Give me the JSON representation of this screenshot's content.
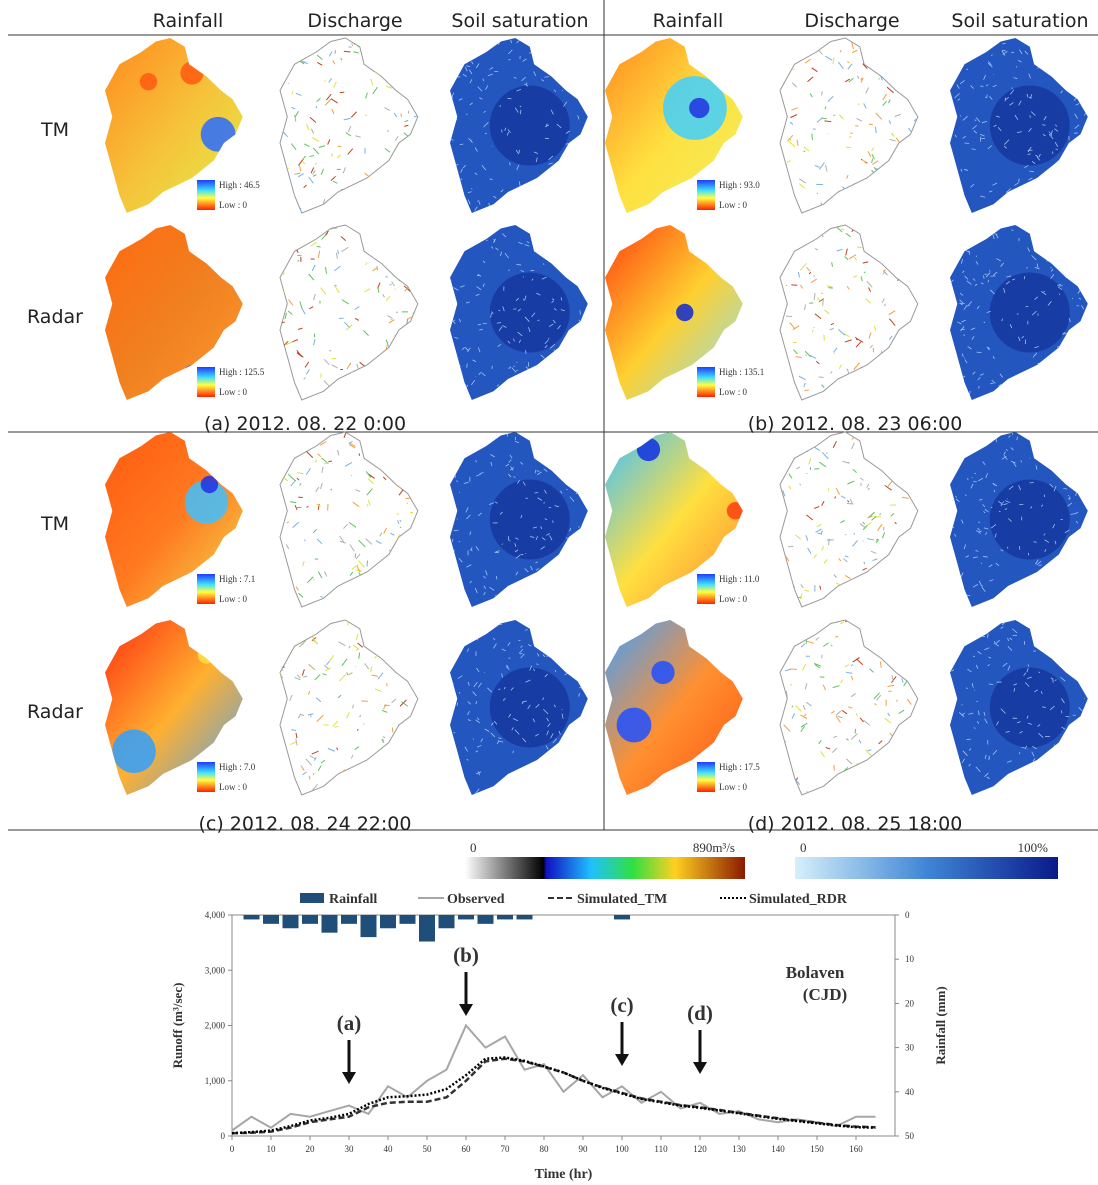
{
  "header": {
    "columns": [
      "Rainfall",
      "Discharge",
      "Soil saturation",
      "Rainfall",
      "Discharge",
      "Soil saturation"
    ]
  },
  "row_labels": [
    "TM",
    "Radar",
    "TM",
    "Radar"
  ],
  "panels": [
    {
      "caption": "(a) 2012. 08. 22 0:00",
      "rows": [
        {
          "legend": [
            "High : 46.5",
            "Low : 0"
          ]
        },
        {
          "legend": [
            "High : 125.5",
            "Low : 0"
          ]
        }
      ]
    },
    {
      "caption": "(b) 2012. 08. 23 06:00",
      "rows": [
        {
          "legend": [
            "High : 93.0",
            "Low : 0"
          ]
        },
        {
          "legend": [
            "High : 135.1",
            "Low : 0"
          ]
        }
      ]
    },
    {
      "caption": "(c) 2012. 08. 24 22:00",
      "rows": [
        {
          "legend": [
            "High : 7.1",
            "Low : 0"
          ]
        },
        {
          "legend": [
            "High : 7.0",
            "Low : 0"
          ]
        }
      ]
    },
    {
      "caption": "(d) 2012. 08. 25 18:00",
      "rows": [
        {
          "legend": [
            "High : 11.0",
            "Low : 0"
          ]
        },
        {
          "legend": [
            "High : 17.5",
            "Low : 0"
          ]
        }
      ]
    }
  ],
  "colorbars": [
    {
      "min": "0",
      "max": "890m³/s"
    },
    {
      "min": "0",
      "max": "100%"
    }
  ],
  "chart_data": {
    "type": "line",
    "x_label": "Time (hr)",
    "y_label": "Runoff (m³/sec)",
    "y2_label": "Rainfall (mm)",
    "inset_label": [
      "Bolaven",
      "(CJD)"
    ],
    "x": [
      0,
      5,
      10,
      15,
      20,
      25,
      30,
      35,
      40,
      45,
      50,
      55,
      60,
      65,
      70,
      75,
      80,
      85,
      90,
      95,
      100,
      105,
      110,
      115,
      120,
      125,
      130,
      135,
      140,
      145,
      150,
      155,
      160,
      165
    ],
    "series": [
      {
        "name": "Rainfall",
        "type": "bar",
        "axis": "y2",
        "color": "#1f4e79",
        "values": [
          0,
          1,
          2,
          3,
          2,
          4,
          2,
          5,
          3,
          2,
          6,
          3,
          1,
          2,
          1,
          1,
          0,
          0,
          0,
          0,
          1,
          0,
          0,
          0,
          0,
          0,
          0,
          0,
          0,
          0,
          0,
          0,
          0,
          0
        ]
      },
      {
        "name": "Observed",
        "color": "#a6a6a6",
        "values": [
          100,
          350,
          150,
          400,
          350,
          450,
          550,
          400,
          900,
          700,
          1000,
          1200,
          2000,
          1600,
          1800,
          1200,
          1300,
          800,
          1100,
          700,
          900,
          600,
          800,
          500,
          600,
          400,
          450,
          300,
          250,
          300,
          250,
          180,
          350,
          350
        ]
      },
      {
        "name": "Simulated_TM",
        "color": "#333333",
        "values": [
          50,
          60,
          80,
          150,
          250,
          300,
          350,
          520,
          600,
          620,
          620,
          700,
          1000,
          1350,
          1400,
          1350,
          1250,
          1150,
          1000,
          880,
          780,
          680,
          620,
          560,
          520,
          470,
          420,
          370,
          320,
          280,
          240,
          200,
          170,
          160
        ]
      },
      {
        "name": "Simulated_RDR",
        "color": "#000000",
        "values": [
          50,
          70,
          100,
          180,
          280,
          330,
          400,
          580,
          700,
          720,
          750,
          850,
          1100,
          1400,
          1420,
          1360,
          1260,
          1150,
          1000,
          870,
          770,
          670,
          610,
          550,
          510,
          460,
          410,
          360,
          310,
          270,
          230,
          190,
          160,
          150
        ]
      }
    ],
    "xlim": [
      0,
      170
    ],
    "xticks": [
      0,
      10,
      20,
      30,
      40,
      50,
      60,
      70,
      80,
      90,
      100,
      110,
      120,
      130,
      140,
      150,
      160
    ],
    "ylim": [
      0,
      4000
    ],
    "yticks": [
      0,
      {
        "value": 1000,
        "label": "1,000"
      },
      {
        "value": 2000,
        "label": "2,000"
      },
      {
        "value": 3000,
        "label": "3,000"
      },
      {
        "value": 4000,
        "label": "4,000"
      }
    ],
    "y2lim": [
      50,
      0
    ],
    "y2ticks": [
      0,
      10,
      20,
      30,
      40,
      50
    ],
    "annotations": [
      {
        "text": "(a)",
        "x": 30
      },
      {
        "text": "(b)",
        "x": 60
      },
      {
        "text": "(c)",
        "x": 100
      },
      {
        "text": "(d)",
        "x": 120
      }
    ]
  }
}
